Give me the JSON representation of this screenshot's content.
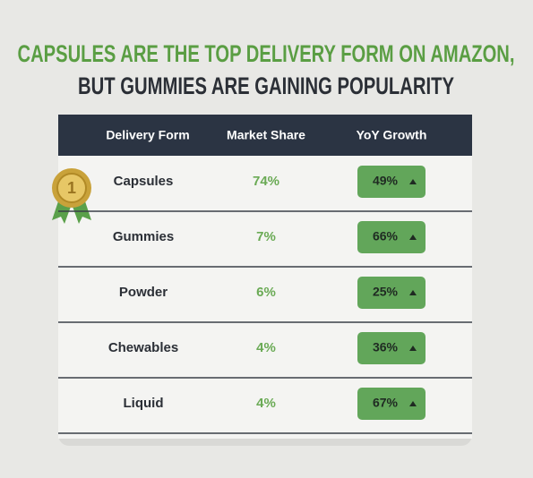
{
  "title": {
    "line1": "CAPSULES ARE THE TOP DELIVERY FORM ON AMAZON,",
    "line2": "BUT GUMMIES ARE GAINING POPULARITY"
  },
  "table": {
    "header": [
      "Delivery Form",
      "Market Share",
      "YoY Growth"
    ],
    "badge": "1",
    "rows": [
      [
        "Capsules",
        "74%",
        "49%"
      ],
      [
        "Gummies",
        "7%",
        "66%"
      ],
      [
        "Powder",
        "6%",
        "25%"
      ],
      [
        "Chewables",
        "4%",
        "36%"
      ],
      [
        "Liquid",
        "4%",
        "67%"
      ]
    ]
  }
}
